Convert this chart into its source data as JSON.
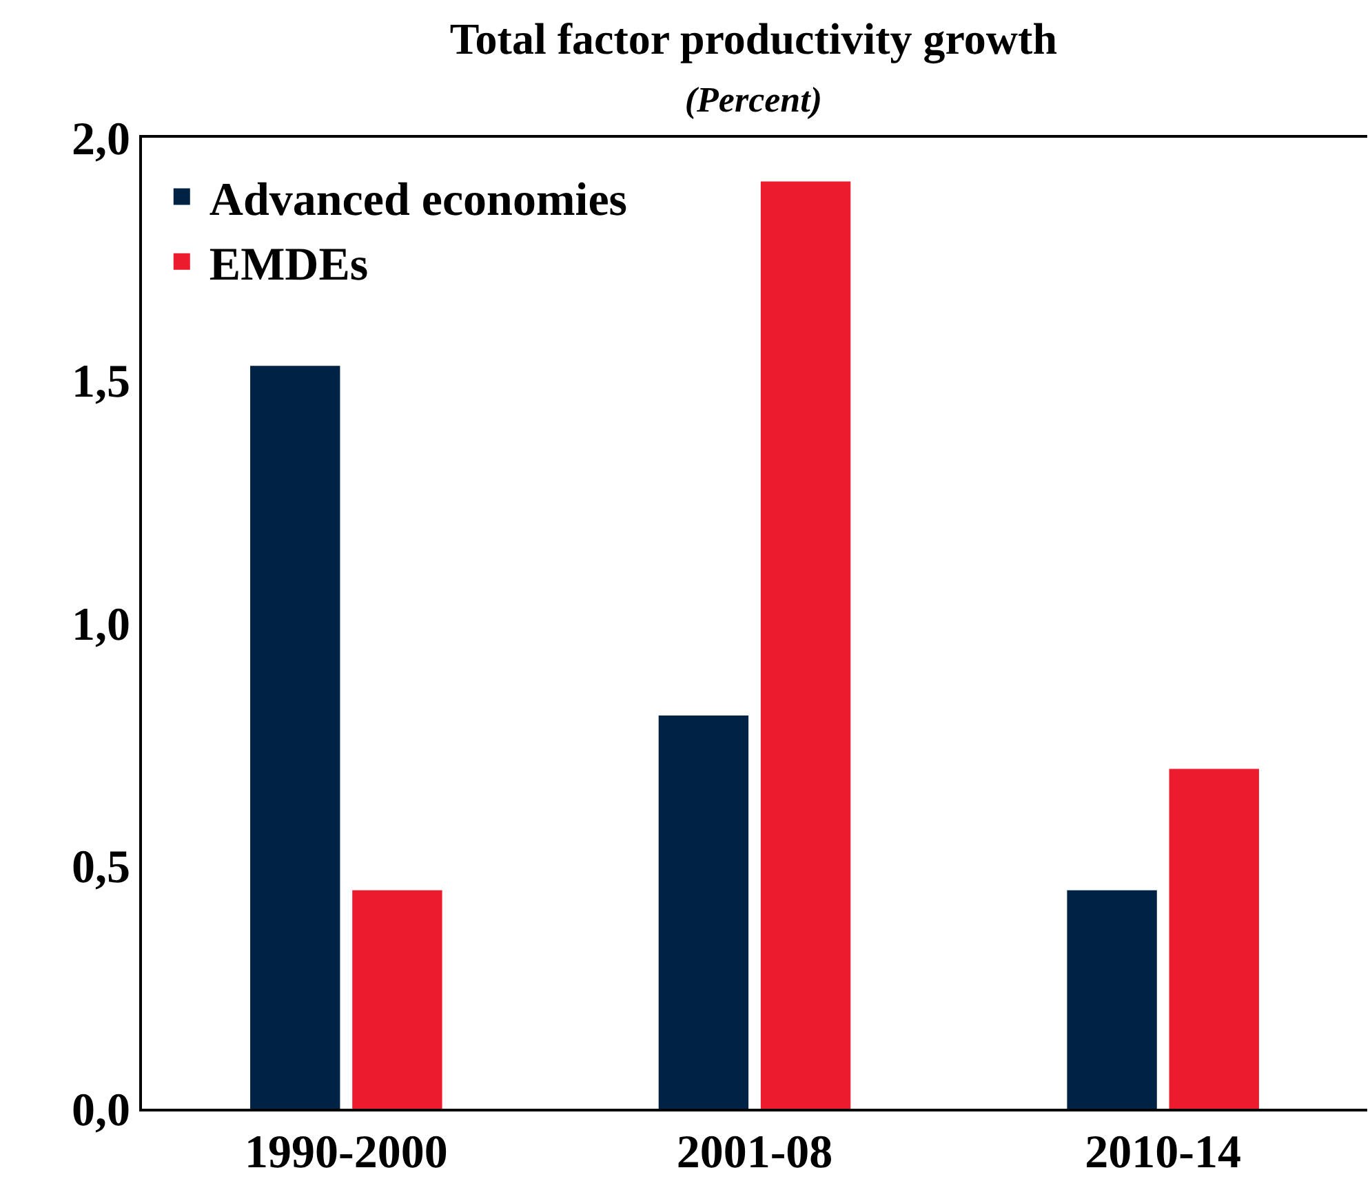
{
  "chart_data": {
    "type": "bar",
    "title": "Total factor productivity growth",
    "subtitle": "(Percent)",
    "categories": [
      "1990-2000",
      "2001-08",
      "2010-14"
    ],
    "series": [
      {
        "name": "Advanced economies",
        "color": "#002345",
        "values": [
          1.53,
          0.81,
          0.45
        ]
      },
      {
        "name": "EMDEs",
        "color": "#ec1c2e",
        "values": [
          0.45,
          1.91,
          0.7
        ]
      }
    ],
    "ylim": [
      0,
      2
    ],
    "yticks": [
      {
        "value": 0,
        "label": "0,0"
      },
      {
        "value": 0.5,
        "label": "0,5"
      },
      {
        "value": 1,
        "label": "1,0"
      },
      {
        "value": 1.5,
        "label": "1,5"
      },
      {
        "value": 2,
        "label": "2,0"
      }
    ],
    "legend": "top left"
  }
}
